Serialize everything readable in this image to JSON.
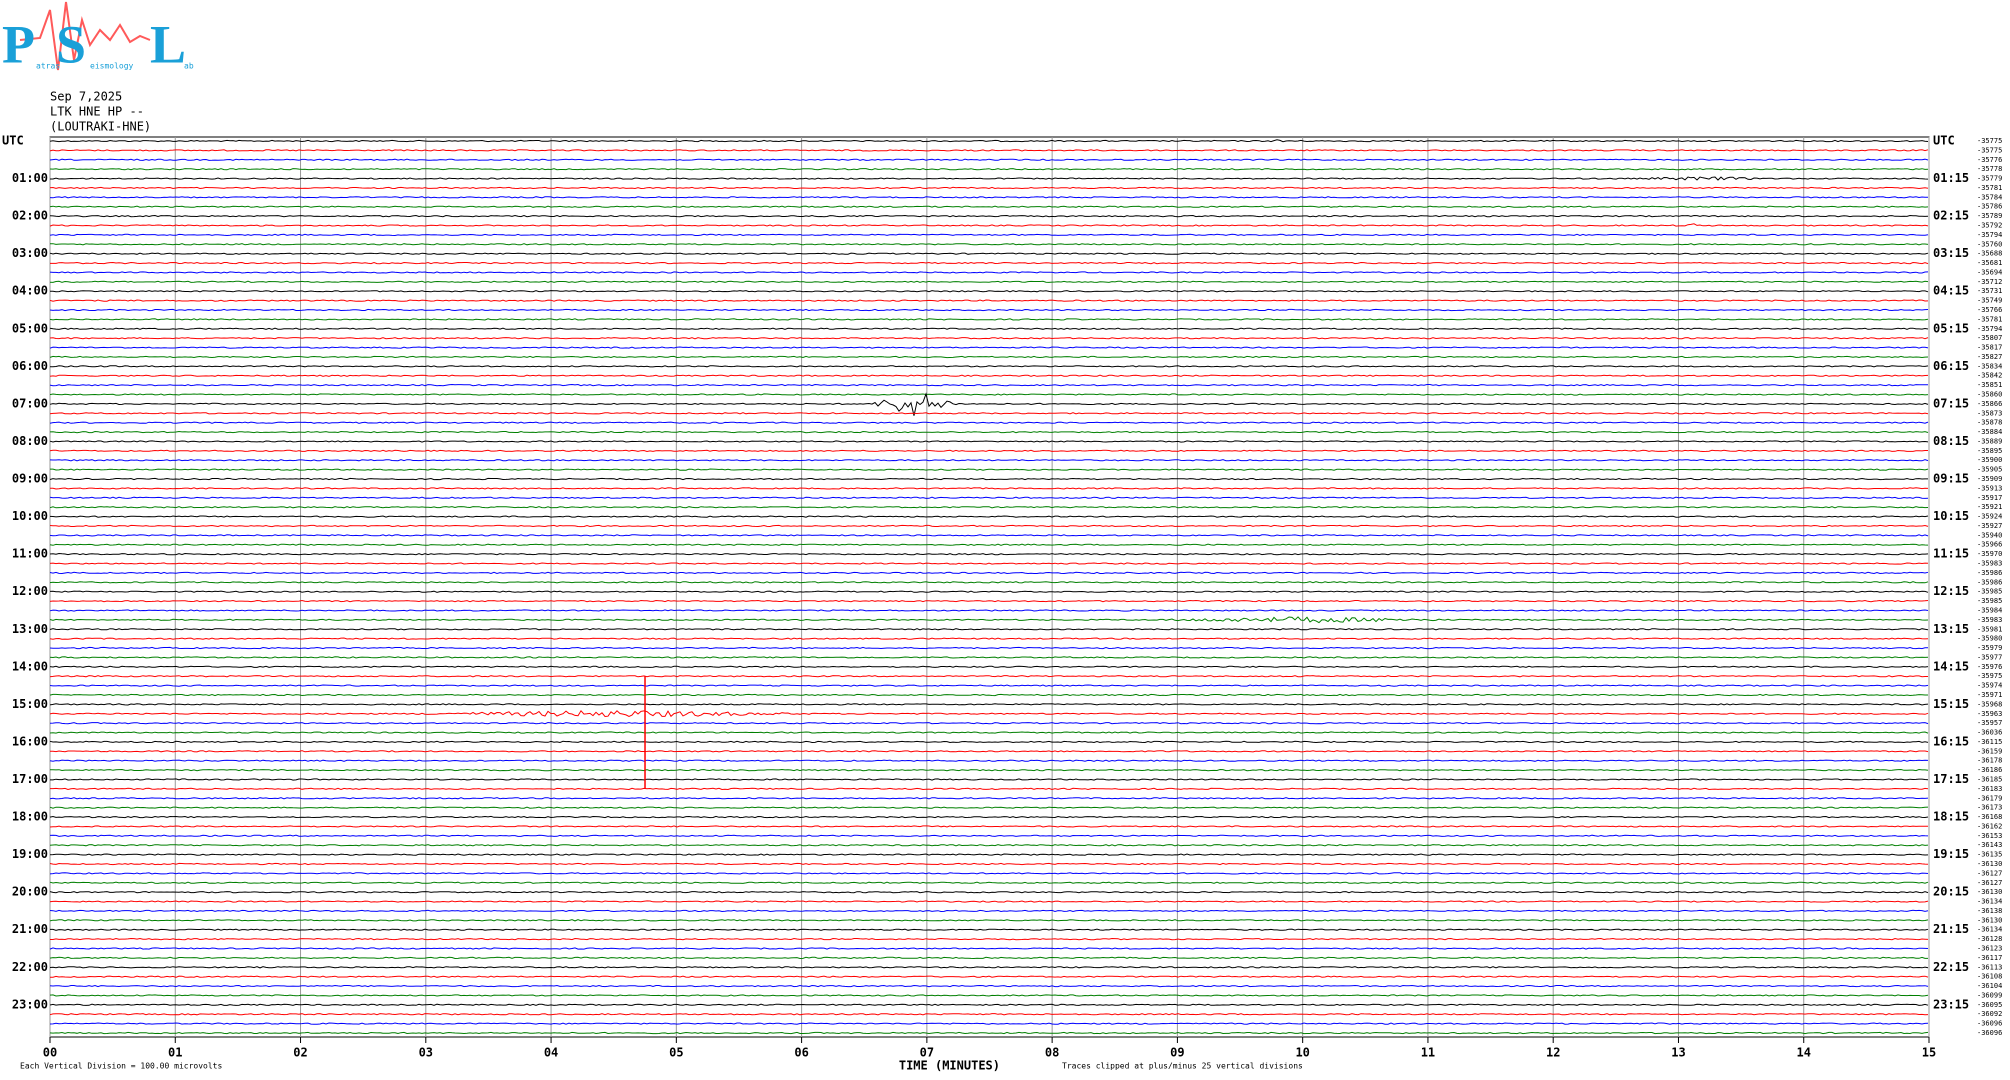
{
  "logo": {
    "letters": [
      "P",
      "S",
      "L"
    ],
    "words": [
      "atras",
      "eismology",
      "ab"
    ]
  },
  "chart_data": {
    "type": "helicorder",
    "title_lines": [
      "Sep 7,2025",
      "LTK HNE HP --",
      "(LOUTRAKI-HNE)"
    ],
    "xlim": [
      0,
      15
    ],
    "xticks": [
      {
        "value": 0,
        "label": "00"
      },
      {
        "value": 1,
        "label": "01"
      },
      {
        "value": 2,
        "label": "02"
      },
      {
        "value": 3,
        "label": "03"
      },
      {
        "value": 4,
        "label": "04"
      },
      {
        "value": 5,
        "label": "05"
      },
      {
        "value": 6,
        "label": "06"
      },
      {
        "value": 7,
        "label": "07"
      },
      {
        "value": 8,
        "label": "08"
      },
      {
        "value": 9,
        "label": "09"
      },
      {
        "value": 10,
        "label": "10"
      },
      {
        "value": 11,
        "label": "11"
      },
      {
        "value": 12,
        "label": "12"
      },
      {
        "value": 13,
        "label": "13"
      },
      {
        "value": 14,
        "label": "14"
      },
      {
        "value": 15,
        "label": "15"
      }
    ],
    "x_label": "TIME (MINUTES)",
    "scale_note": "Each Vertical Division =  100.00 microvolts",
    "clip_note": "Traces clipped at plus/minus 25 vertical divisions",
    "left_labels": [
      "UTC",
      "01:00",
      "02:00",
      "03:00",
      "04:00",
      "05:00",
      "06:00",
      "07:00",
      "08:00",
      "09:00",
      "10:00",
      "11:00",
      "12:00",
      "13:00",
      "14:00",
      "15:00",
      "16:00",
      "17:00",
      "18:00",
      "19:00",
      "20:00",
      "21:00",
      "22:00",
      "23:00"
    ],
    "right_labels": [
      "UTC",
      "01:15",
      "02:15",
      "03:15",
      "04:15",
      "05:15",
      "06:15",
      "07:15",
      "08:15",
      "09:15",
      "10:15",
      "11:15",
      "12:15",
      "13:15",
      "14:15",
      "15:15",
      "16:15",
      "17:15",
      "18:15",
      "19:15",
      "20:15",
      "21:15",
      "22:15",
      "23:15"
    ],
    "trace_colors": [
      "#000000",
      "#ff0000",
      "#0000ff",
      "#007f00"
    ],
    "trace_offsets": [
      -35775,
      -35775,
      -35776,
      -35778,
      -35779,
      -35781,
      -35784,
      -35786,
      -35789,
      -35792,
      -35794,
      -35760,
      -35688,
      -35681,
      -35694,
      -35712,
      -35731,
      -35749,
      -35766,
      -35781,
      -35794,
      -35807,
      -35817,
      -35827,
      -35834,
      -35842,
      -35851,
      -35860,
      -35866,
      -35873,
      -35878,
      -35884,
      -35889,
      -35895,
      -35900,
      -35905,
      -35909,
      -35913,
      -35917,
      -35921,
      -35924,
      -35927,
      -35940,
      -35966,
      -35970,
      -35983,
      -35986,
      -35986,
      -35985,
      -35985,
      -35984,
      -35983,
      -35981,
      -35980,
      -35979,
      -35977,
      -35976,
      -35975,
      -35974,
      -35971,
      -35968,
      -35963,
      -35957,
      -36036,
      -36115,
      -36159,
      -36178,
      -36186,
      -36185,
      -36183,
      -36179,
      -36173,
      -36168,
      -36162,
      -36153,
      -36143,
      -36135,
      -36130,
      -36127,
      -36127,
      -36130,
      -36134,
      -36138,
      -36130,
      -36134,
      -36128,
      -36123,
      -36117,
      -36113,
      -36108,
      -36104,
      -36099,
      -36095,
      -36092,
      -36096,
      -36096
    ]
  }
}
